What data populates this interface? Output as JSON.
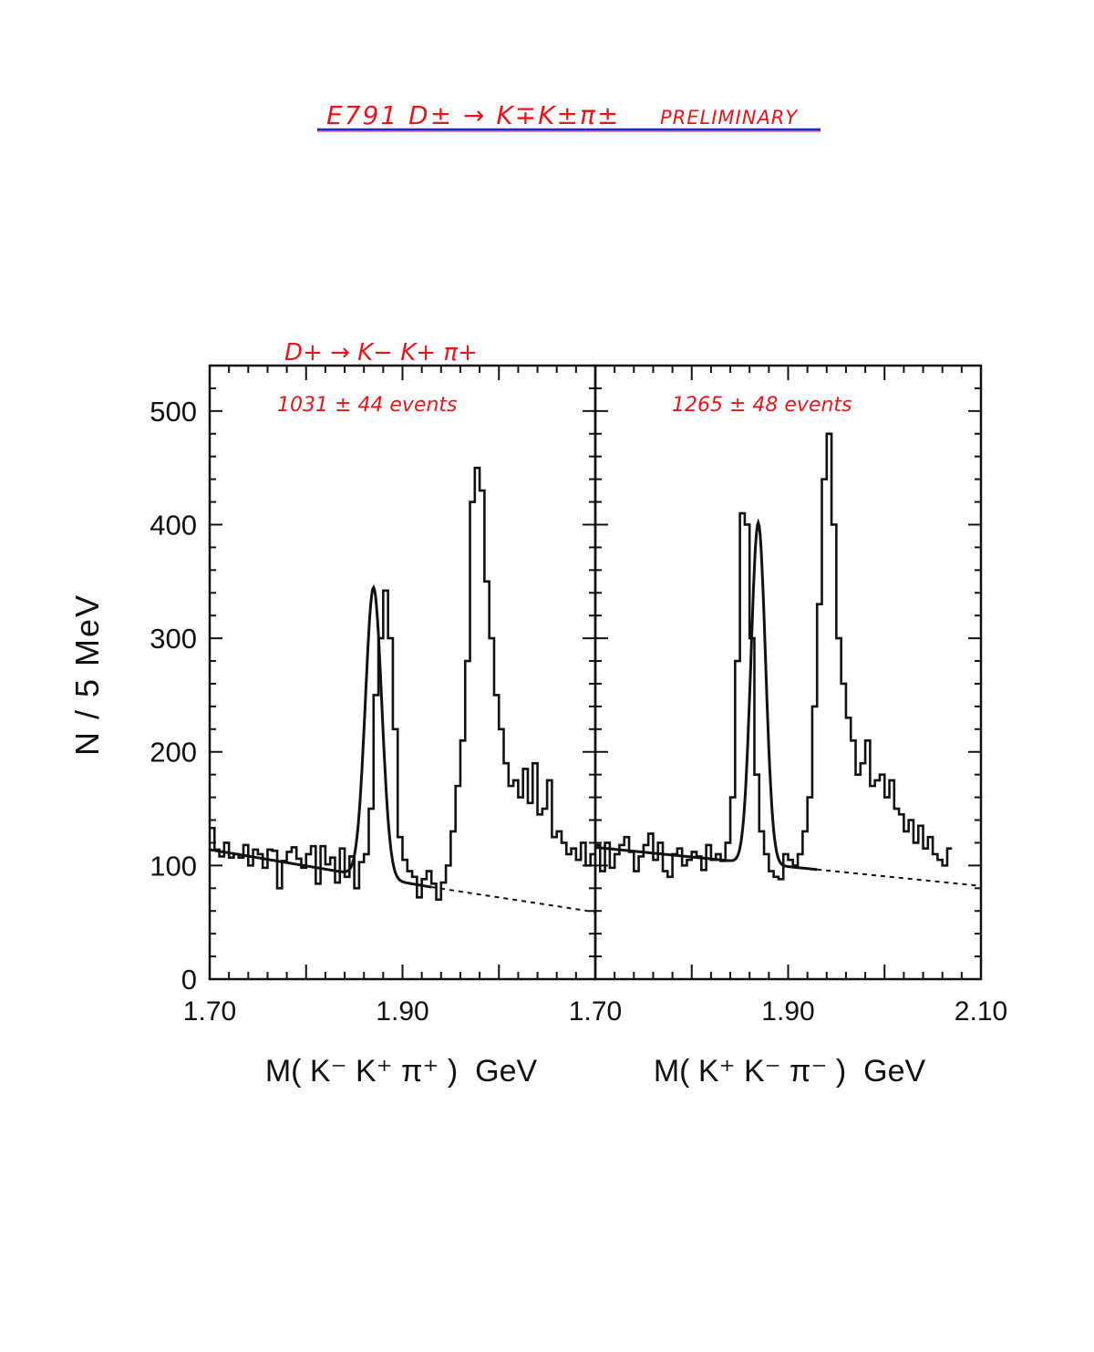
{
  "header": {
    "title": "E791 D± → K∓K±π±",
    "status": "PRELIMINARY",
    "title_color": "#e8161b",
    "underline_color": "#1a2bd6"
  },
  "annotations": {
    "left_decay": "D+ → K− K+ π+",
    "left_events": "1031 ± 44  events",
    "right_events": "1265 ± 48 events"
  },
  "axes": {
    "ylabel": "N / 5 MeV",
    "y_ticks": [
      "0",
      "100",
      "200",
      "300",
      "400",
      "500"
    ],
    "x_ticks_left": [
      "1.70",
      "1.90"
    ],
    "x_ticks_right": [
      "1.70",
      "1.90",
      "2.10"
    ],
    "left_xlabel": "M( K⁻ K⁺ π⁺ )  GeV",
    "right_xlabel": "M( K⁺ K⁻ π⁻ )  GeV"
  },
  "chart_data": [
    {
      "type": "histogram",
      "panel": "left",
      "xlabel": "M( K⁻ K⁺ π⁺ )  GeV",
      "ylabel": "N / 5 MeV",
      "xlim": [
        1.7,
        2.1
      ],
      "ylim": [
        0,
        540
      ],
      "bin_width": 0.005,
      "bin_start": 1.7,
      "counts": [
        133,
        114,
        108,
        120,
        107,
        110,
        107,
        118,
        100,
        114,
        110,
        98,
        114,
        113,
        80,
        104,
        112,
        116,
        106,
        98,
        110,
        117,
        84,
        117,
        101,
        107,
        85,
        115,
        90,
        108,
        80,
        103,
        110,
        150,
        250,
        300,
        342,
        300,
        220,
        125,
        105,
        95,
        90,
        72,
        88,
        95,
        84,
        70,
        85,
        100,
        130,
        170,
        210,
        280,
        420,
        450,
        430,
        350,
        300,
        250,
        220,
        190,
        170,
        175,
        160,
        185,
        155,
        190,
        145,
        150,
        175,
        125,
        130,
        120,
        110,
        115,
        105,
        120,
        100,
        110
      ],
      "fit": {
        "background_line": [
          [
            1.7,
            114
          ],
          [
            1.93,
            81
          ],
          [
            2.1,
            59
          ]
        ],
        "signal_mean": 1.87,
        "signal_sigma": 0.0085,
        "signal_peak": 255
      },
      "annotation": "1031 ± 44  events"
    },
    {
      "type": "histogram",
      "panel": "right",
      "xlabel": "M( K⁺ K⁻ π⁻ )  GeV",
      "ylabel": "N / 5 MeV",
      "xlim": [
        1.7,
        2.1
      ],
      "ylim": [
        0,
        540
      ],
      "bin_width": 0.005,
      "bin_start": 1.7,
      "counts": [
        118,
        95,
        120,
        98,
        110,
        118,
        125,
        112,
        95,
        108,
        118,
        128,
        105,
        120,
        95,
        90,
        110,
        115,
        100,
        105,
        112,
        108,
        96,
        118,
        105,
        110,
        104,
        120,
        160,
        280,
        410,
        400,
        300,
        180,
        130,
        110,
        95,
        90,
        88,
        110,
        105,
        100,
        110,
        130,
        160,
        240,
        330,
        440,
        480,
        400,
        300,
        260,
        230,
        210,
        180,
        190,
        210,
        170,
        175,
        180,
        160,
        175,
        150,
        145,
        130,
        140,
        120,
        135,
        115,
        125,
        110,
        105,
        100,
        115
      ],
      "fit": {
        "background_line": [
          [
            1.7,
            116
          ],
          [
            2.1,
            82
          ]
        ],
        "signal_mean": 1.869,
        "signal_sigma": 0.0075,
        "signal_peak": 300
      },
      "annotation": "1265 ± 48 events"
    }
  ]
}
